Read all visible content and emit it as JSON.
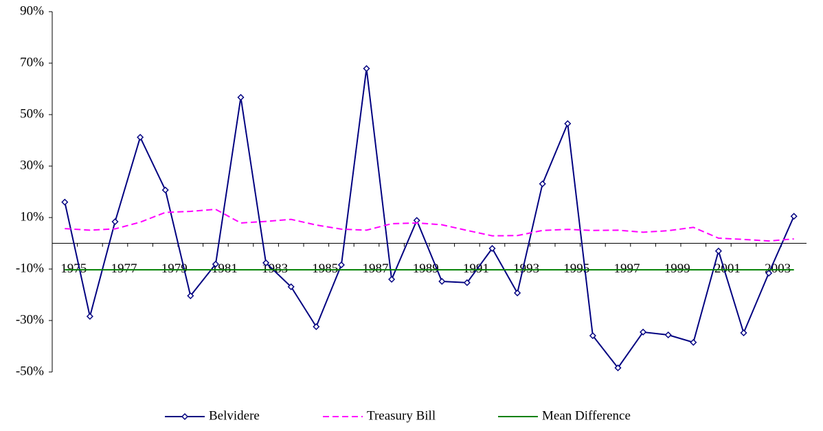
{
  "chart_data": {
    "type": "line",
    "categories": [
      "1975",
      null,
      "1977",
      null,
      "1979",
      null,
      "1981",
      null,
      "1983",
      null,
      "1985",
      null,
      "1987",
      null,
      "1989",
      null,
      "1991",
      null,
      "1993",
      null,
      "1995",
      null,
      "1997",
      null,
      "1999",
      null,
      "2001",
      null,
      "2003",
      null
    ],
    "series": [
      {
        "name": "Belvidere",
        "color": "#000080",
        "marker": "diamond",
        "dash": false,
        "values": [
          16,
          -28.4,
          8.4,
          41.2,
          20.7,
          -20.4,
          -8.1,
          56.7,
          -7.6,
          -16.9,
          -32.4,
          -8.4,
          67.9,
          -14,
          8.9,
          -14.8,
          -15.3,
          -2,
          -19.3,
          23.1,
          46.5,
          -35.9,
          -48.4,
          -34.5,
          -35.6,
          -38.5,
          -3,
          -34.8,
          -11.6,
          10.5
        ]
      },
      {
        "name": "Treasury Bill",
        "color": "#ff00ff",
        "marker": null,
        "dash": true,
        "values": [
          5.7,
          5.1,
          5.6,
          8.2,
          12.0,
          12.4,
          13.2,
          7.9,
          8.5,
          9.3,
          7.1,
          5.5,
          5.1,
          7.6,
          7.9,
          7.2,
          5.0,
          2.9,
          3.0,
          5.0,
          5.4,
          5.0,
          5.1,
          4.3,
          4.9,
          6.2,
          2.0,
          1.5,
          0.9,
          1.7
        ]
      },
      {
        "name": "Mean Difference",
        "color": "#008000",
        "marker": null,
        "dash": false,
        "values": [
          -10.3,
          -10.3,
          -10.3,
          -10.3,
          -10.3,
          -10.3,
          -10.3,
          -10.3,
          -10.3,
          -10.3,
          -10.3,
          -10.3,
          -10.3,
          -10.3,
          -10.3,
          -10.3,
          -10.3,
          -10.3,
          -10.3,
          -10.3,
          -10.3,
          -10.3,
          -10.3,
          -10.3,
          -10.3,
          -10.3,
          -10.3,
          -10.3,
          -10.3,
          -10.3
        ]
      }
    ],
    "ylim": [
      -50,
      90
    ],
    "yticks": [
      {
        "value": -50,
        "label": "-50%"
      },
      {
        "value": -30,
        "label": "-30%"
      },
      {
        "value": -10,
        "label": "-10%"
      },
      {
        "value": 10,
        "label": "10%"
      },
      {
        "value": 30,
        "label": "30%"
      },
      {
        "value": 50,
        "label": "50%"
      },
      {
        "value": 70,
        "label": "70%"
      },
      {
        "value": 90,
        "label": "90%"
      }
    ],
    "grid": false,
    "legend": "bottom"
  }
}
